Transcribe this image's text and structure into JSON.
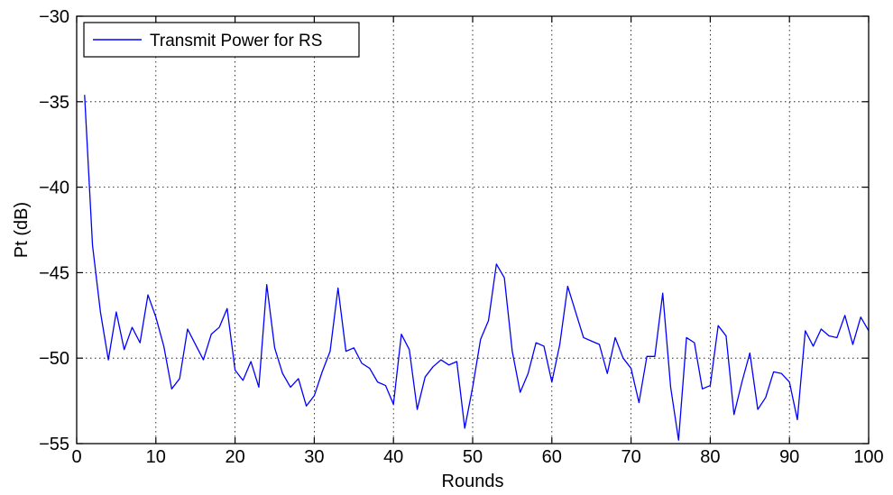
{
  "chart_data": {
    "type": "line",
    "title": "",
    "xlabel": "Rounds",
    "ylabel": "Pt (dB)",
    "xlim": [
      0,
      100
    ],
    "ylim": [
      -55,
      -30
    ],
    "xticks": [
      0,
      10,
      20,
      30,
      40,
      50,
      60,
      70,
      80,
      90,
      100
    ],
    "yticks": [
      -55,
      -50,
      -45,
      -40,
      -35,
      -30
    ],
    "grid": "dotted",
    "legend_position": "top-left",
    "series": [
      {
        "name": "Transmit Power for RS",
        "color": "#0000ff",
        "x": [
          1,
          2,
          3,
          4,
          5,
          6,
          7,
          8,
          9,
          10,
          11,
          12,
          13,
          14,
          15,
          16,
          17,
          18,
          19,
          20,
          21,
          22,
          23,
          24,
          25,
          26,
          27,
          28,
          29,
          30,
          31,
          32,
          33,
          34,
          35,
          36,
          37,
          38,
          39,
          40,
          41,
          42,
          43,
          44,
          45,
          46,
          47,
          48,
          49,
          50,
          51,
          52,
          53,
          54,
          55,
          56,
          57,
          58,
          59,
          60,
          61,
          62,
          63,
          64,
          65,
          66,
          67,
          68,
          69,
          70,
          71,
          72,
          73,
          74,
          75,
          76,
          77,
          78,
          79,
          80,
          81,
          82,
          83,
          84,
          85,
          86,
          87,
          88,
          89,
          90,
          91,
          92,
          93,
          94,
          95,
          96,
          97,
          98,
          99,
          100
        ],
        "y": [
          -34.6,
          -43.4,
          -47.3,
          -50.1,
          -47.3,
          -49.5,
          -48.2,
          -49.1,
          -46.3,
          -47.6,
          -49.3,
          -51.8,
          -51.2,
          -48.3,
          -49.2,
          -50.1,
          -48.6,
          -48.2,
          -47.1,
          -50.7,
          -51.3,
          -50.2,
          -51.7,
          -45.7,
          -49.4,
          -50.9,
          -51.7,
          -51.2,
          -52.8,
          -52.2,
          -50.8,
          -49.6,
          -45.9,
          -49.6,
          -49.4,
          -50.3,
          -50.6,
          -51.4,
          -51.6,
          -52.7,
          -48.6,
          -49.5,
          -53.0,
          -51.1,
          -50.5,
          -50.1,
          -50.4,
          -50.2,
          -54.1,
          -51.7,
          -48.9,
          -47.8,
          -44.5,
          -45.3,
          -49.6,
          -52.0,
          -50.9,
          -49.1,
          -49.3,
          -51.4,
          -49.2,
          -45.8,
          -47.3,
          -48.8,
          -49.0,
          -49.2,
          -50.9,
          -48.8,
          -50.0,
          -50.6,
          -52.6,
          -49.9,
          -49.9,
          -46.2,
          -51.7,
          -54.8,
          -48.8,
          -49.1,
          -51.8,
          -51.6,
          -48.1,
          -48.7,
          -53.3,
          -51.4,
          -49.7,
          -53.0,
          -52.3,
          -50.8,
          -50.9,
          -51.4,
          -53.6,
          -48.4,
          -49.3,
          -48.3,
          -48.7,
          -48.8,
          -47.5,
          -49.2,
          -47.6,
          -48.4
        ]
      }
    ]
  }
}
